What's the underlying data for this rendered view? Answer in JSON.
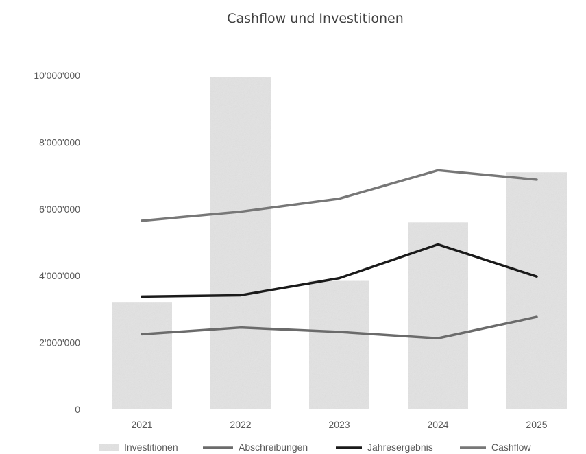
{
  "chart_data": {
    "type": "bar",
    "title": "Cashflow und Investitionen",
    "categories": [
      "2021",
      "2022",
      "2023",
      "2024",
      "2025"
    ],
    "ylim": [
      0,
      10000000
    ],
    "yticks": [
      "0",
      "2'000'000",
      "4'000'000",
      "6'000'000",
      "8'000'000",
      "10'000'000"
    ],
    "grid": false,
    "legend_position": "bottom",
    "series": [
      {
        "name": "Investitionen",
        "type": "bar",
        "color": "#e3e3e3",
        "values": [
          3200000,
          9950000,
          3850000,
          5600000,
          7100000
        ]
      },
      {
        "name": "Abschreibungen",
        "type": "line",
        "color": "#6b6b6b",
        "values": [
          2250000,
          2450000,
          2320000,
          2130000,
          2770000
        ]
      },
      {
        "name": "Jahresergebnis",
        "type": "line",
        "color": "#1a1a1a",
        "values": [
          3380000,
          3420000,
          3930000,
          4940000,
          3980000
        ]
      },
      {
        "name": "Cashflow",
        "type": "line",
        "color": "#777777",
        "values": [
          5650000,
          5920000,
          6310000,
          7160000,
          6880000
        ]
      }
    ]
  }
}
